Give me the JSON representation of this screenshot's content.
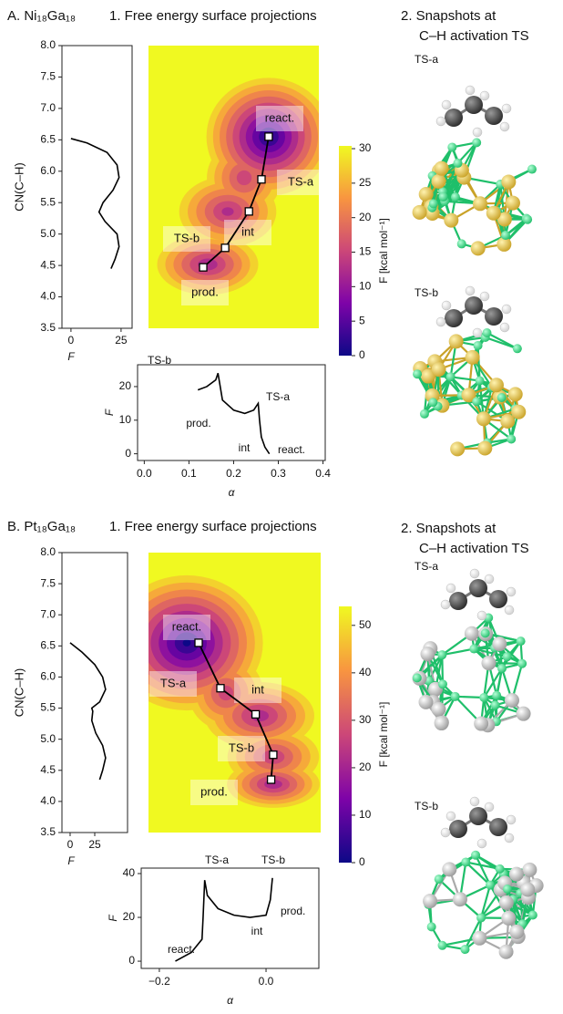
{
  "panels": [
    {
      "heading": "A. Ni₁₈Ga₁₈",
      "section1": "1. Free energy surface projections",
      "section2": [
        "2.  Snapshots at",
        "C–H activation TS"
      ],
      "snapshots": [
        "TS-a",
        "TS-b"
      ]
    },
    {
      "heading": "B. Pt₁₈Ga₁₈",
      "section1": "1. Free energy surface projections",
      "section2": [
        "2.  Snapshots at",
        "C–H activation TS"
      ],
      "snapshots": [
        "TS-a",
        "TS-b"
      ]
    }
  ],
  "chart_data": [
    {
      "type": "line",
      "orientation": "vertical",
      "x_label": "F",
      "y_label": "CN(C–H)",
      "color": "#000000",
      "x": [
        6.52,
        6.45,
        6.3,
        6.1,
        5.9,
        5.7,
        5.5,
        5.35,
        5.2,
        5.0,
        4.8,
        4.6,
        4.45
      ],
      "values": [
        0,
        8,
        18,
        23,
        24,
        21,
        16,
        14,
        17,
        23,
        24,
        22,
        20
      ],
      "vlim": [
        -4.5,
        30.5
      ],
      "vticks": [
        0,
        25
      ],
      "ylim": [
        3.5,
        8.0
      ],
      "yticks": [
        3.5,
        {
          "value": 4,
          "label": "4.0"
        },
        4.5,
        {
          "value": 5,
          "label": "5.0"
        },
        5.5,
        {
          "value": 6,
          "label": "6.0"
        },
        6.5,
        {
          "value": 7,
          "label": "7.0"
        },
        7.5,
        {
          "value": 8,
          "label": "8.0"
        }
      ]
    },
    {
      "type": "contour",
      "colormap": "plasma",
      "colorbar_label": "F [kcal mol⁻¹]",
      "clim": [
        0,
        30.4
      ],
      "cticks": [
        0,
        5,
        10,
        15,
        20,
        25,
        30
      ],
      "xlim": [
        0.012,
        0.392
      ],
      "ylim": [
        3.5,
        8.0
      ],
      "path": {
        "x": [
          0.28,
          0.264,
          0.236,
          0.183,
          0.134
        ],
        "y": [
          6.55,
          5.87,
          5.36,
          4.78,
          4.47
        ],
        "labels": [
          "react.",
          "TS-a",
          "int",
          "TS-b",
          "prod."
        ]
      }
    },
    {
      "type": "line",
      "x_label": "α",
      "y_label": "F",
      "color": "#000000",
      "x": [
        0.12,
        0.14,
        0.16,
        0.165,
        0.175,
        0.2,
        0.225,
        0.245,
        0.255,
        0.258,
        0.262,
        0.27,
        0.28
      ],
      "values": [
        19,
        20,
        22,
        24,
        16,
        13,
        12,
        13,
        15,
        10,
        5,
        2,
        0
      ],
      "xlim": [
        -0.015,
        0.405
      ],
      "xticks": [
        {
          "value": 0,
          "label": "0.0"
        },
        0.1,
        0.2,
        0.3,
        0.4
      ],
      "ylim": [
        -2,
        26.5
      ],
      "yticks": [
        0,
        10,
        20
      ],
      "annotations": [
        "TS-b",
        "TS-a",
        "prod.",
        "int",
        "react."
      ]
    },
    {
      "type": "line",
      "orientation": "vertical",
      "x_label": "F",
      "y_label": "CN(C–H)",
      "color": "#000000",
      "x": [
        6.55,
        6.4,
        6.2,
        6.0,
        5.8,
        5.6,
        5.5,
        5.45,
        5.3,
        5.1,
        4.9,
        4.7,
        4.5,
        4.35
      ],
      "values": [
        0,
        12,
        25,
        33,
        36,
        30,
        22,
        23,
        22,
        26,
        33,
        36,
        33,
        30
      ],
      "vlim": [
        -8.3,
        58.3
      ],
      "vticks": [
        0,
        25
      ],
      "ylim": [
        3.5,
        8.0
      ],
      "yticks": [
        3.5,
        {
          "value": 4,
          "label": "4.0"
        },
        4.5,
        {
          "value": 5,
          "label": "5.0"
        },
        5.5,
        {
          "value": 6,
          "label": "6.0"
        },
        6.5,
        {
          "value": 7,
          "label": "7.0"
        },
        7.5,
        {
          "value": 8,
          "label": "8.0"
        }
      ]
    },
    {
      "type": "contour",
      "colormap": "plasma",
      "colorbar_label": "F [kcal mol⁻¹]",
      "clim": [
        0,
        54
      ],
      "cticks": [
        0,
        10,
        20,
        30,
        40,
        50
      ],
      "xlim": [
        -0.22,
        0.103
      ],
      "ylim": [
        3.5,
        8.0
      ],
      "path": {
        "x": [
          -0.126,
          -0.085,
          -0.019,
          0.014,
          0.01
        ],
        "y": [
          6.55,
          5.82,
          5.4,
          4.75,
          4.35
        ],
        "labels": [
          "react.",
          "TS-a",
          "int",
          "TS-b",
          "prod."
        ]
      }
    },
    {
      "type": "line",
      "x_label": "α",
      "y_label": "F",
      "color": "#000000",
      "x": [
        -0.17,
        -0.14,
        -0.12,
        -0.118,
        -0.115,
        -0.11,
        -0.09,
        -0.06,
        -0.03,
        0.0,
        0.008,
        0.012
      ],
      "values": [
        0,
        4,
        10,
        20,
        37,
        30,
        24,
        21,
        20,
        21,
        28,
        38
      ],
      "xlim": [
        -0.234,
        0.099
      ],
      "xticks": [
        {
          "value": -0.2,
          "label": "−0.2"
        },
        {
          "value": 0,
          "label": "0.0"
        }
      ],
      "ylim": [
        -3.3,
        42.5
      ],
      "yticks": [
        0,
        20,
        40
      ],
      "annotations": [
        "TS-a",
        "TS-b",
        "prod.",
        "int",
        "react."
      ]
    }
  ]
}
